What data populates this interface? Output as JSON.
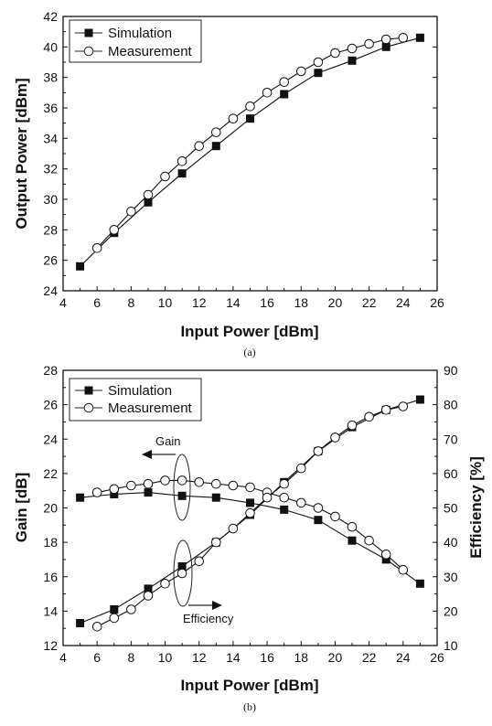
{
  "chart_data": [
    {
      "type": "line",
      "xlabel": "Input Power [dBm]",
      "ylabel": "Output Power [dBm]",
      "xlim": [
        4,
        26
      ],
      "ylim": [
        24,
        42
      ],
      "x_ticks": [
        4,
        6,
        8,
        10,
        12,
        14,
        16,
        18,
        20,
        22,
        24,
        26
      ],
      "y_ticks": [
        24,
        26,
        28,
        30,
        32,
        34,
        36,
        38,
        40,
        42
      ],
      "legend_position": "top-left",
      "caption": "(a)",
      "series": [
        {
          "name": "Simulation",
          "marker": "filled-square",
          "x": [
            5,
            7,
            9,
            11,
            13,
            15,
            17,
            19,
            21,
            23,
            25
          ],
          "y": [
            25.6,
            27.8,
            29.8,
            31.7,
            33.5,
            35.3,
            36.9,
            38.3,
            39.1,
            40.0,
            40.6
          ]
        },
        {
          "name": "Measurement",
          "marker": "open-circle",
          "x": [
            6,
            7,
            8,
            9,
            10,
            11,
            12,
            13,
            14,
            15,
            16,
            17,
            18,
            19,
            20,
            21,
            22,
            23,
            24
          ],
          "y": [
            26.8,
            28.0,
            29.2,
            30.3,
            31.5,
            32.5,
            33.5,
            34.4,
            35.3,
            36.1,
            37.0,
            37.7,
            38.4,
            39.0,
            39.6,
            39.9,
            40.2,
            40.5,
            40.6
          ]
        }
      ]
    },
    {
      "type": "line",
      "xlabel": "Input Power [dBm]",
      "ylabel": "Gain [dB]",
      "y2label": "Efficiency [%]",
      "xlim": [
        4,
        26
      ],
      "ylim": [
        12,
        28
      ],
      "y2lim": [
        10,
        90
      ],
      "x_ticks": [
        4,
        6,
        8,
        10,
        12,
        14,
        16,
        18,
        20,
        22,
        24,
        26
      ],
      "y_ticks": [
        12,
        14,
        16,
        18,
        20,
        22,
        24,
        26,
        28
      ],
      "y2_ticks": [
        10,
        20,
        30,
        40,
        50,
        60,
        70,
        80,
        90
      ],
      "legend_position": "top-left",
      "caption": "(b)",
      "annotations": [
        "Gain",
        "Efficiency"
      ],
      "series": [
        {
          "name": "Simulation",
          "group": "Gain",
          "axis": "left",
          "marker": "filled-square",
          "x": [
            5,
            7,
            9,
            11,
            13,
            15,
            17,
            19,
            21,
            23,
            25
          ],
          "y": [
            20.6,
            20.8,
            20.9,
            20.7,
            20.6,
            20.3,
            19.9,
            19.3,
            18.1,
            17.0,
            15.6
          ]
        },
        {
          "name": "Measurement",
          "group": "Gain",
          "axis": "left",
          "marker": "open-circle",
          "x": [
            6,
            7,
            8,
            9,
            10,
            11,
            12,
            13,
            14,
            15,
            16,
            17,
            18,
            19,
            20,
            21,
            22,
            23,
            24
          ],
          "y": [
            20.9,
            21.1,
            21.3,
            21.4,
            21.6,
            21.6,
            21.5,
            21.4,
            21.3,
            21.2,
            20.9,
            20.6,
            20.3,
            20.0,
            19.5,
            18.9,
            18.1,
            17.3,
            16.4
          ]
        },
        {
          "name": "Simulation",
          "group": "Efficiency",
          "axis": "right",
          "marker": "filled-square",
          "x": [
            5,
            7,
            9,
            11,
            13,
            15,
            17,
            19,
            21,
            23,
            25
          ],
          "y": [
            16.5,
            20.5,
            26.5,
            33.0,
            40.0,
            48.0,
            57.5,
            66.5,
            73.5,
            78.5,
            81.5
          ]
        },
        {
          "name": "Measurement",
          "group": "Efficiency",
          "axis": "right",
          "marker": "open-circle",
          "x": [
            6,
            7,
            8,
            9,
            10,
            11,
            12,
            13,
            14,
            15,
            16,
            17,
            18,
            19,
            20,
            21,
            22,
            23,
            24
          ],
          "y": [
            15.5,
            18.0,
            20.5,
            24.5,
            28.0,
            31.0,
            34.5,
            40.0,
            44.0,
            48.5,
            53.0,
            57.0,
            61.5,
            66.5,
            70.5,
            74.0,
            76.5,
            78.5,
            79.5
          ]
        }
      ]
    }
  ]
}
